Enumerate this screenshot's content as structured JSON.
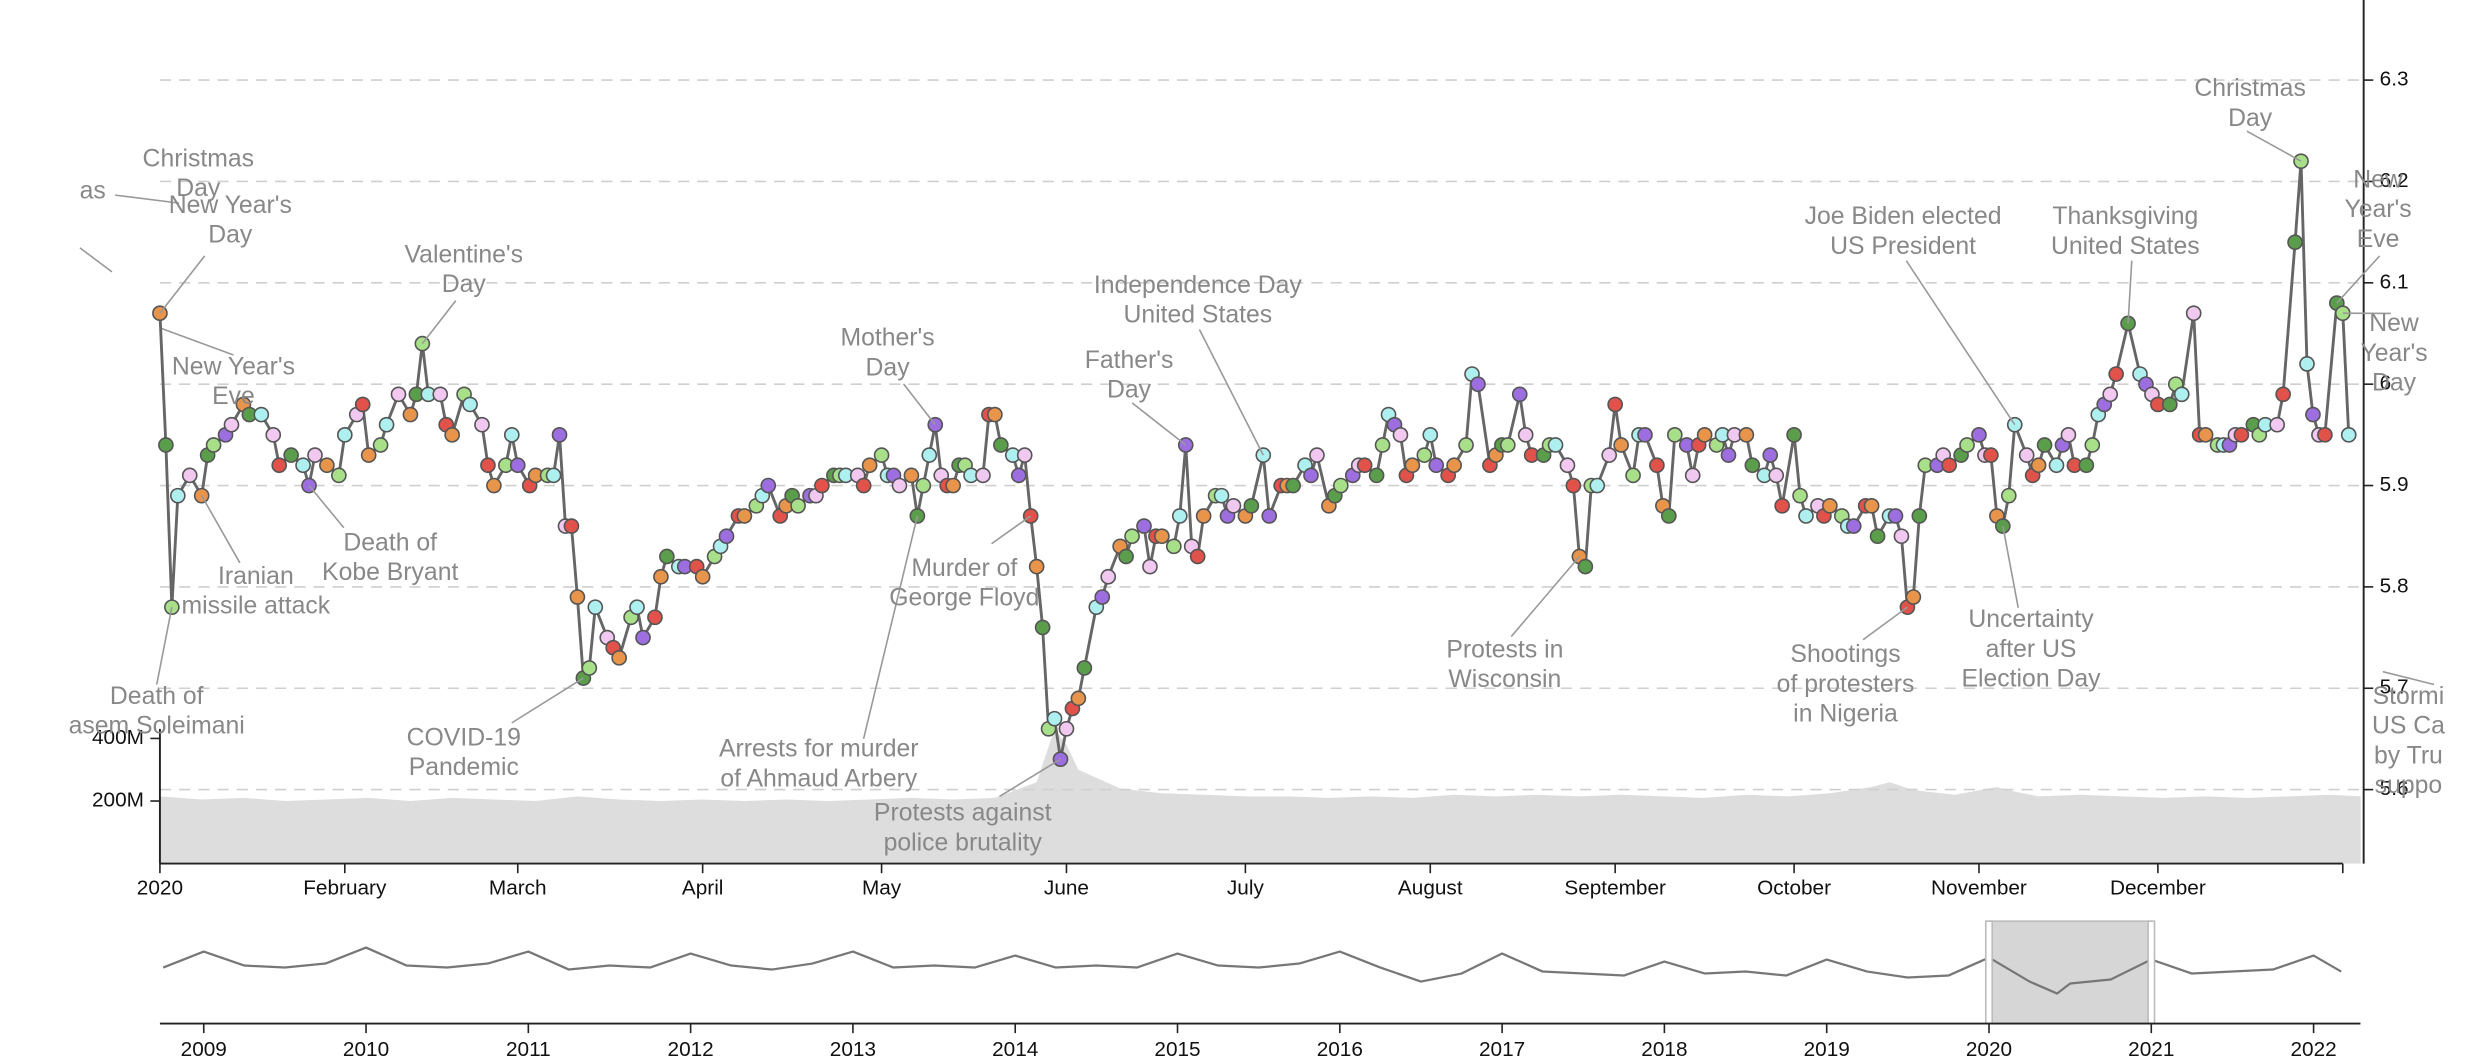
{
  "chart_data": [
    {
      "type": "line",
      "xlim": [
        0,
        369.5
      ],
      "ylim": [
        5.527,
        6.379
      ],
      "xticks": [
        {
          "value": 0,
          "label": "2020"
        },
        {
          "value": 31,
          "label": "February"
        },
        {
          "value": 60,
          "label": "March"
        },
        {
          "value": 91,
          "label": "April"
        },
        {
          "value": 121,
          "label": "May"
        },
        {
          "value": 152,
          "label": "June"
        },
        {
          "value": 182,
          "label": "July"
        },
        {
          "value": 213,
          "label": "August"
        },
        {
          "value": 244,
          "label": "September"
        },
        {
          "value": 274,
          "label": "October"
        },
        {
          "value": 305,
          "label": "November"
        },
        {
          "value": 335,
          "label": "December"
        }
      ],
      "yticks": [
        5.6,
        5.7,
        5.8,
        5.9,
        6.0,
        6.1,
        6.2,
        6.3
      ],
      "grid": true,
      "color": "#666666",
      "weekday_colors": [
        "#e8944a",
        "#5a9e4b",
        "#a8e08a",
        "#aef0f0",
        "#9c6ee0",
        "#f0c8f0",
        "#e0524a"
      ],
      "x": [
        0,
        1,
        2,
        3,
        5,
        7,
        8,
        9,
        11,
        12,
        14,
        15,
        17,
        19,
        20,
        22,
        24,
        25,
        26,
        28,
        30,
        31,
        33,
        34,
        35,
        37,
        38,
        40,
        42,
        43,
        44,
        45,
        47,
        48,
        49,
        51,
        52,
        54,
        55,
        56,
        58,
        59,
        60,
        62,
        63,
        65,
        66,
        67,
        68,
        69,
        70,
        71,
        72,
        73,
        75,
        76,
        77,
        79,
        80,
        81,
        83,
        84,
        85,
        87,
        88,
        90,
        91,
        93,
        94,
        95,
        97,
        98,
        100,
        101,
        102,
        104,
        105,
        106,
        107,
        109,
        110,
        111,
        113,
        114,
        115,
        117,
        118,
        119,
        121,
        122,
        123,
        124,
        126,
        127,
        128,
        129,
        130,
        131,
        132,
        133,
        134,
        135,
        136,
        138,
        139,
        140,
        141,
        143,
        144,
        145,
        146,
        147,
        148,
        149,
        150,
        151,
        152,
        153,
        154,
        155,
        157,
        158,
        159,
        161,
        162,
        163,
        165,
        166,
        167,
        168,
        170,
        171,
        172,
        173,
        174,
        175,
        177,
        178,
        179,
        180,
        182,
        183,
        185,
        186,
        188,
        189,
        190,
        192,
        193,
        194,
        196,
        197,
        198,
        200,
        201,
        202,
        204,
        205,
        206,
        207,
        208,
        209,
        210,
        212,
        213,
        214,
        216,
        217,
        219,
        220,
        221,
        223,
        224,
        225,
        226,
        228,
        229,
        230,
        232,
        233,
        234,
        236,
        237,
        238,
        239,
        240,
        241,
        243,
        244,
        245,
        247,
        248,
        249,
        251,
        252,
        253,
        254,
        256,
        257,
        258,
        259,
        261,
        262,
        263,
        264,
        266,
        267,
        269,
        270,
        271,
        272,
        274,
        275,
        276,
        278,
        279,
        280,
        282,
        283,
        284,
        286,
        287,
        288,
        290,
        291,
        292,
        293,
        294,
        295,
        296,
        298,
        299,
        300,
        302,
        303,
        305,
        306,
        307,
        308,
        309,
        310,
        311,
        313,
        314,
        315,
        316,
        318,
        319,
        320,
        321,
        323,
        324,
        325,
        326,
        327,
        328,
        330,
        332,
        333,
        334,
        335,
        337,
        338,
        339,
        341,
        342,
        343,
        345,
        346,
        347,
        348,
        349,
        351,
        352,
        353,
        355,
        356,
        358,
        359,
        360,
        361,
        362,
        363,
        365,
        366,
        367
      ],
      "values": [
        6.07,
        5.94,
        5.78,
        5.89,
        5.91,
        5.89,
        5.93,
        5.94,
        5.95,
        5.96,
        5.98,
        5.97,
        5.97,
        5.95,
        5.92,
        5.93,
        5.92,
        5.9,
        5.93,
        5.92,
        5.91,
        5.95,
        5.97,
        5.98,
        5.93,
        5.94,
        5.96,
        5.99,
        5.97,
        5.99,
        6.04,
        5.99,
        5.99,
        5.96,
        5.95,
        5.99,
        5.98,
        5.96,
        5.92,
        5.9,
        5.92,
        5.95,
        5.92,
        5.9,
        5.91,
        5.91,
        5.91,
        5.95,
        5.86,
        5.86,
        5.79,
        5.71,
        5.72,
        5.78,
        5.75,
        5.74,
        5.73,
        5.77,
        5.78,
        5.75,
        5.77,
        5.81,
        5.83,
        5.82,
        5.82,
        5.82,
        5.81,
        5.83,
        5.84,
        5.85,
        5.87,
        5.87,
        5.88,
        5.89,
        5.9,
        5.87,
        5.88,
        5.89,
        5.88,
        5.89,
        5.89,
        5.9,
        5.91,
        5.91,
        5.91,
        5.91,
        5.9,
        5.92,
        5.93,
        5.91,
        5.91,
        5.9,
        5.91,
        5.87,
        5.9,
        5.93,
        5.96,
        5.91,
        5.9,
        5.9,
        5.92,
        5.92,
        5.91,
        5.91,
        5.97,
        5.97,
        5.94,
        5.93,
        5.91,
        5.93,
        5.87,
        5.82,
        5.76,
        5.66,
        5.67,
        5.63,
        5.66,
        5.68,
        5.69,
        5.72,
        5.78,
        5.79,
        5.81,
        5.84,
        5.83,
        5.85,
        5.86,
        5.82,
        5.85,
        5.85,
        5.84,
        5.87,
        5.94,
        5.84,
        5.83,
        5.87,
        5.89,
        5.89,
        5.87,
        5.88,
        5.87,
        5.88,
        5.93,
        5.87,
        5.9,
        5.9,
        5.9,
        5.92,
        5.91,
        5.93,
        5.88,
        5.89,
        5.9,
        5.91,
        5.92,
        5.92,
        5.91,
        5.94,
        5.97,
        5.96,
        5.95,
        5.91,
        5.92,
        5.93,
        5.95,
        5.92,
        5.91,
        5.92,
        5.94,
        6.01,
        6.0,
        5.92,
        5.93,
        5.94,
        5.94,
        5.99,
        5.95,
        5.93,
        5.93,
        5.94,
        5.94,
        5.92,
        5.9,
        5.83,
        5.82,
        5.9,
        5.9,
        5.93,
        5.98,
        5.94,
        5.91,
        5.95,
        5.95,
        5.92,
        5.88,
        5.87,
        5.95,
        5.94,
        5.91,
        5.94,
        5.95,
        5.94,
        5.95,
        5.93,
        5.95,
        5.95,
        5.92,
        5.91,
        5.93,
        5.91,
        5.88,
        5.95,
        5.89,
        5.87,
        5.88,
        5.87,
        5.88,
        5.87,
        5.86,
        5.86,
        5.88,
        5.88,
        5.85,
        5.87,
        5.87,
        5.85,
        5.78,
        5.79,
        5.87,
        5.92,
        5.92,
        5.93,
        5.92,
        5.93,
        5.94,
        5.95,
        5.93,
        5.93,
        5.87,
        5.86,
        5.89,
        5.96,
        5.93,
        5.91,
        5.92,
        5.94,
        5.92,
        5.94,
        5.95,
        5.92,
        5.92,
        5.94,
        5.97,
        5.98,
        5.99,
        6.01,
        6.06,
        6.01,
        6.0,
        5.99,
        5.98,
        5.98,
        6.0,
        5.99,
        6.07,
        5.95,
        5.95,
        5.94,
        5.94,
        5.94,
        5.95,
        5.95,
        5.96,
        5.95,
        5.96,
        5.96,
        5.99,
        6.14,
        6.22,
        6.02,
        5.97,
        5.95,
        5.95,
        6.08,
        6.07,
        5.95
      ],
      "annotations": [
        {
          "text": [
            "as"
          ]
        },
        {
          "text": [
            "Christmas",
            "Day"
          ]
        },
        {
          "text": [
            "New Year's",
            "Day"
          ],
          "x": 0
        },
        {
          "text": [
            "New Year's",
            "Eve"
          ]
        },
        {
          "text": [
            "Iranian",
            "missile attack"
          ],
          "x": 7
        },
        {
          "text": [
            "Death of",
            "Kobe Bryant"
          ],
          "x": 25
        },
        {
          "text": [
            "Valentine's",
            "Day"
          ],
          "x": 44
        },
        {
          "text": [
            "Death of",
            "asem Soleimani"
          ],
          "x": 2
        },
        {
          "text": [
            "COVID-19",
            "Pandemic"
          ],
          "x": 71
        },
        {
          "text": [
            "Arrests for murder",
            "of Ahmaud Arbery"
          ],
          "x": 127
        },
        {
          "text": [
            "Mother's",
            "Day"
          ],
          "x": 130
        },
        {
          "text": [
            "Murder of",
            "George Floyd"
          ],
          "x": 146
        },
        {
          "text": [
            "Protests against",
            "police brutality"
          ],
          "x": 151
        },
        {
          "text": [
            "Father's",
            "Day"
          ],
          "x": 172
        },
        {
          "text": [
            "Independence Day",
            "United States"
          ],
          "x": 185
        },
        {
          "text": [
            "Protests in",
            "Wisconsin"
          ],
          "x": 238
        },
        {
          "text": [
            "Shootings",
            "of protesters",
            "in Nigeria"
          ],
          "x": 293
        },
        {
          "text": [
            "Joe Biden elected",
            "US President"
          ],
          "x": 311
        },
        {
          "text": [
            "Uncertainty",
            "after US",
            "Election Day"
          ],
          "x": 309
        },
        {
          "text": [
            "Thanksgiving",
            "United States"
          ],
          "x": 330
        },
        {
          "text": [
            "Christmas",
            "Day"
          ],
          "x": 359
        },
        {
          "text": [
            "New",
            "Year's",
            "Eve"
          ],
          "x": 365
        },
        {
          "text": [
            "New",
            "Year's",
            "Day"
          ],
          "x": 366
        },
        {
          "text": [
            "Stormi",
            "US Ca",
            "by Tru",
            "suppo"
          ]
        }
      ]
    },
    {
      "type": "area",
      "color": "#dddddd",
      "xlim": [
        0,
        369.5
      ],
      "y2lim": [
        0,
        2760000000
      ],
      "y2ticks": [
        {
          "value": 200000000,
          "label": "200M"
        },
        {
          "value": 400000000,
          "label": "400M"
        }
      ],
      "x": [
        0,
        7,
        14,
        21,
        28,
        35,
        42,
        49,
        56,
        63,
        70,
        77,
        84,
        91,
        98,
        105,
        112,
        119,
        126,
        133,
        140,
        147,
        150,
        152,
        154,
        161,
        168,
        175,
        182,
        189,
        196,
        203,
        210,
        217,
        224,
        231,
        238,
        245,
        252,
        259,
        266,
        273,
        280,
        287,
        290,
        294,
        301,
        308,
        311,
        315,
        322,
        329,
        336,
        343,
        350,
        357,
        364,
        369
      ],
      "values": [
        215000000,
        205000000,
        210000000,
        200000000,
        205000000,
        210000000,
        200000000,
        210000000,
        205000000,
        200000000,
        215000000,
        205000000,
        200000000,
        205000000,
        200000000,
        205000000,
        200000000,
        205000000,
        210000000,
        205000000,
        210000000,
        260000000,
        430000000,
        380000000,
        300000000,
        240000000,
        225000000,
        220000000,
        215000000,
        215000000,
        210000000,
        215000000,
        210000000,
        220000000,
        215000000,
        220000000,
        215000000,
        220000000,
        215000000,
        210000000,
        220000000,
        215000000,
        225000000,
        245000000,
        260000000,
        235000000,
        220000000,
        245000000,
        230000000,
        215000000,
        220000000,
        215000000,
        210000000,
        215000000,
        210000000,
        215000000,
        220000000,
        215000000
      ]
    },
    {
      "type": "line",
      "color": "#777777",
      "xlim": [
        2008.73,
        2022.21
      ],
      "ylim": [
        5.8,
        6.2
      ],
      "xticks": [
        2009,
        2010,
        2011,
        2012,
        2013,
        2014,
        2015,
        2016,
        2017,
        2018,
        2019,
        2020,
        2021,
        2022
      ],
      "brush": [
        2020,
        2021
      ],
      "x": [
        2008.75,
        2009.0,
        2009.25,
        2009.5,
        2009.75,
        2010.0,
        2010.25,
        2010.5,
        2010.75,
        2011.0,
        2011.25,
        2011.5,
        2011.75,
        2012.0,
        2012.25,
        2012.5,
        2012.75,
        2013.0,
        2013.25,
        2013.5,
        2013.75,
        2014.0,
        2014.25,
        2014.5,
        2014.75,
        2015.0,
        2015.25,
        2015.5,
        2015.75,
        2016.0,
        2016.25,
        2016.5,
        2016.75,
        2017.0,
        2017.25,
        2017.5,
        2017.75,
        2018.0,
        2018.25,
        2018.5,
        2018.75,
        2019.0,
        2019.25,
        2019.5,
        2019.75,
        2020.0,
        2020.25,
        2020.42,
        2020.5,
        2020.75,
        2021.0,
        2021.25,
        2021.5,
        2021.75,
        2022.0,
        2022.17
      ],
      "values": [
        6.0,
        6.08,
        6.01,
        6.0,
        6.02,
        6.1,
        6.01,
        6.0,
        6.02,
        6.08,
        5.99,
        6.01,
        6.0,
        6.07,
        6.01,
        5.99,
        6.02,
        6.08,
        6.0,
        6.01,
        6.0,
        6.06,
        6.0,
        6.01,
        6.0,
        6.07,
        6.01,
        6.0,
        6.02,
        6.08,
        6.0,
        5.93,
        5.97,
        6.07,
        5.98,
        5.97,
        5.96,
        6.03,
        5.97,
        5.98,
        5.96,
        6.04,
        5.98,
        5.95,
        5.96,
        6.05,
        5.93,
        5.87,
        5.92,
        5.94,
        6.04,
        5.97,
        5.98,
        5.99,
        6.06,
        5.98
      ]
    }
  ]
}
